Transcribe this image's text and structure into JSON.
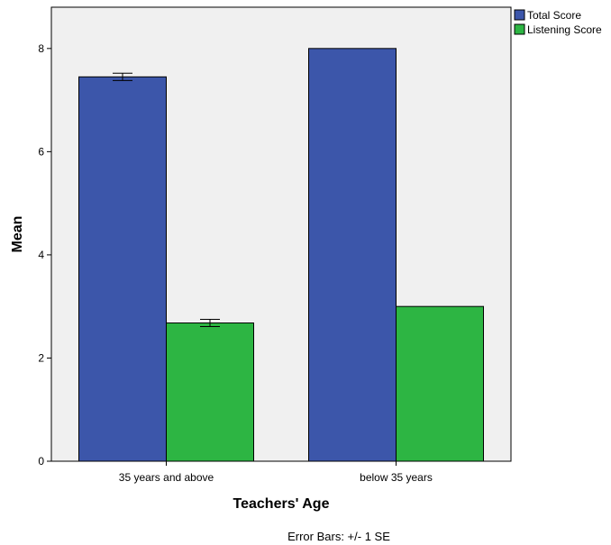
{
  "chart_data": {
    "type": "bar",
    "categories": [
      "35 years and above",
      "below 35 years"
    ],
    "series": [
      {
        "name": "Total Score",
        "values": [
          7.45,
          8.0
        ],
        "error": [
          0.07,
          0
        ]
      },
      {
        "name": "Listening Score",
        "values": [
          2.68,
          3.0
        ],
        "error": [
          0.07,
          0
        ]
      }
    ],
    "xlabel": "Teachers' Age",
    "ylabel": "Mean",
    "ylim": [
      0,
      8.8
    ],
    "yticks": [
      0,
      2,
      4,
      6,
      8
    ],
    "legend_position": "top-right",
    "grid": false,
    "footnote": "Error Bars: +/- 1 SE",
    "colors": {
      "Total Score": "#3c56aa",
      "Listening Score": "#2db543",
      "plot_background": "#f0f0f0"
    }
  }
}
